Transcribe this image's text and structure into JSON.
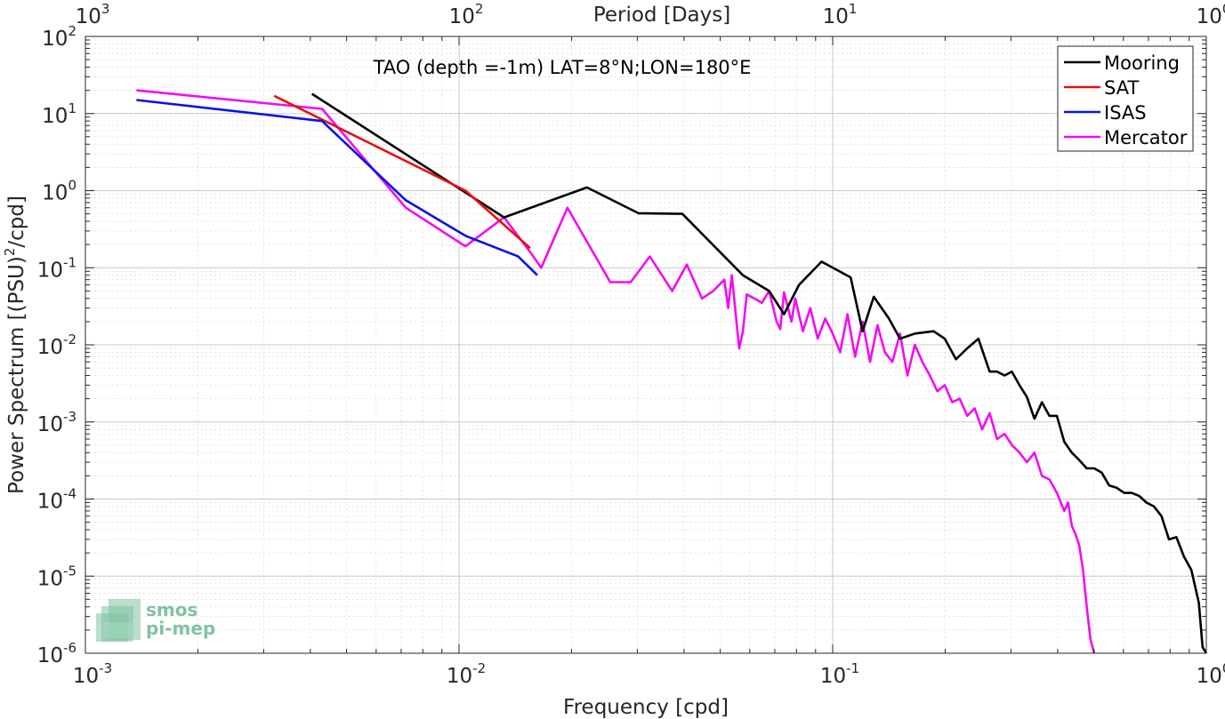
{
  "chart_data": {
    "type": "line",
    "title": "",
    "annotation": "TAO (depth =-1m) LAT=8°N;LON=180°E",
    "xlabel": "Frequency [cpd]",
    "ylabel": "Power Spectrum [(PSU)^2/cpd]",
    "ylabel_parts": {
      "base": "Power Spectrum [(PSU)",
      "sup": "2",
      "tail": "/cpd]"
    },
    "top_xlabel": "Period [Days]",
    "xscale": "log",
    "yscale": "log",
    "xlim": [
      0.001,
      1
    ],
    "ylim": [
      1e-06,
      100
    ],
    "grid": true,
    "minor_grid": true,
    "legend_position": "top-right",
    "x_ticks": [
      {
        "value": 0.001,
        "base": "10",
        "exp": "-3"
      },
      {
        "value": 0.01,
        "base": "10",
        "exp": "-2"
      },
      {
        "value": 0.1,
        "base": "10",
        "exp": "-1"
      },
      {
        "value": 1,
        "base": "10",
        "exp": "0"
      }
    ],
    "top_ticks": [
      {
        "value": 0.001,
        "base": "10",
        "exp": "3"
      },
      {
        "value": 0.01,
        "base": "10",
        "exp": "2"
      },
      {
        "value": 0.1,
        "base": "10",
        "exp": "1"
      },
      {
        "value": 1,
        "base": "10",
        "exp": "0"
      }
    ],
    "y_ticks": [
      {
        "value": 100,
        "base": "10",
        "exp": "2"
      },
      {
        "value": 10,
        "base": "10",
        "exp": "1"
      },
      {
        "value": 1,
        "base": "10",
        "exp": "0"
      },
      {
        "value": 0.1,
        "base": "10",
        "exp": "-1"
      },
      {
        "value": 0.01,
        "base": "10",
        "exp": "-2"
      },
      {
        "value": 0.001,
        "base": "10",
        "exp": "-3"
      },
      {
        "value": 0.0001,
        "base": "10",
        "exp": "-4"
      },
      {
        "value": 1e-05,
        "base": "10",
        "exp": "-5"
      },
      {
        "value": 1e-06,
        "base": "10",
        "exp": "-6"
      }
    ],
    "series": [
      {
        "name": "Mooring",
        "color": "#000000",
        "x": [
          0.00404,
          0.0132,
          0.022,
          0.0302,
          0.0396,
          0.0575,
          0.0676,
          0.0741,
          0.0813,
          0.0934,
          0.1117,
          0.1202,
          0.1288,
          0.1413,
          0.1514,
          0.166,
          0.1862,
          0.1995,
          0.2138,
          0.2291,
          0.2455,
          0.263,
          0.2754,
          0.2884,
          0.3016,
          0.3162,
          0.3311,
          0.3467,
          0.3631,
          0.3802,
          0.3981,
          0.4169,
          0.4365,
          0.4571,
          0.4786,
          0.5012,
          0.5248,
          0.5495,
          0.5754,
          0.6026,
          0.631,
          0.6607,
          0.6918,
          0.7244,
          0.7586,
          0.7943,
          0.8318,
          0.871,
          0.912,
          0.955,
          0.9772,
          1.0
        ],
        "y": [
          18.0,
          0.45,
          1.1,
          0.51,
          0.5,
          0.08,
          0.05,
          0.025,
          0.06,
          0.12,
          0.075,
          0.015,
          0.042,
          0.022,
          0.012,
          0.014,
          0.015,
          0.012,
          0.0065,
          0.009,
          0.012,
          0.0045,
          0.0045,
          0.004,
          0.0045,
          0.003,
          0.0021,
          0.0011,
          0.0018,
          0.0012,
          0.0012,
          0.00055,
          0.0004,
          0.00032,
          0.00025,
          0.00025,
          0.00022,
          0.00015,
          0.00014,
          0.00012,
          0.00012,
          0.00011,
          9e-05,
          8e-05,
          6e-05,
          3e-05,
          3.2e-05,
          1.8e-05,
          1.2e-05,
          4.5e-06,
          1.2e-06,
          1e-06
        ]
      },
      {
        "name": "SAT",
        "color": "#e81010",
        "x": [
          0.0032,
          0.0104,
          0.0155
        ],
        "y": [
          17.0,
          1.0,
          0.18
        ]
      },
      {
        "name": "ISAS",
        "color": "#0a12e6",
        "x": [
          0.00137,
          0.0043,
          0.0072,
          0.0104,
          0.0144,
          0.0162
        ],
        "y": [
          15.0,
          8.0,
          0.75,
          0.26,
          0.14,
          0.08
        ]
      },
      {
        "name": "Mercator",
        "color": "#f20cf2",
        "x": [
          0.00137,
          0.0043,
          0.0072,
          0.0104,
          0.0132,
          0.0155,
          0.0166,
          0.0195,
          0.0254,
          0.0288,
          0.0324,
          0.0372,
          0.0407,
          0.0447,
          0.0479,
          0.0513,
          0.0525,
          0.0537,
          0.0562,
          0.0575,
          0.0589,
          0.0617,
          0.0646,
          0.0676,
          0.0708,
          0.0724,
          0.0741,
          0.0776,
          0.0794,
          0.0832,
          0.0871,
          0.0912,
          0.0955,
          0.1,
          0.1047,
          0.1096,
          0.1148,
          0.1202,
          0.1259,
          0.1318,
          0.138,
          0.1445,
          0.1514,
          0.1585,
          0.166,
          0.1738,
          0.182,
          0.1905,
          0.1995,
          0.2089,
          0.2188,
          0.2291,
          0.2399,
          0.2512,
          0.263,
          0.2754,
          0.2884,
          0.302,
          0.3162,
          0.3311,
          0.3467,
          0.3631,
          0.3802,
          0.3981,
          0.4169,
          0.4266,
          0.4365,
          0.4467,
          0.4571,
          0.4677,
          0.4786,
          0.4898,
          0.5012
        ],
        "y": [
          20.0,
          11.5,
          0.6,
          0.19,
          0.45,
          0.16,
          0.1,
          0.6,
          0.065,
          0.065,
          0.14,
          0.05,
          0.11,
          0.04,
          0.05,
          0.07,
          0.03,
          0.08,
          0.009,
          0.015,
          0.045,
          0.04,
          0.035,
          0.05,
          0.02,
          0.016,
          0.048,
          0.02,
          0.04,
          0.015,
          0.03,
          0.012,
          0.022,
          0.014,
          0.008,
          0.025,
          0.007,
          0.02,
          0.006,
          0.018,
          0.008,
          0.006,
          0.014,
          0.004,
          0.01,
          0.006,
          0.004,
          0.0025,
          0.003,
          0.0018,
          0.002,
          0.0012,
          0.0015,
          0.0008,
          0.0013,
          0.0006,
          0.0007,
          0.0005,
          0.0004,
          0.0003,
          0.0004,
          0.0002,
          0.00018,
          0.00012,
          7e-05,
          9e-05,
          4.5e-05,
          3.5e-05,
          2.5e-05,
          1.2e-05,
          4e-06,
          1.5e-06,
          1e-06
        ]
      }
    ]
  },
  "logo": {
    "line1": "smos",
    "line2": "pi-mep"
  },
  "colors": {
    "grid": "#dcdcdc",
    "axis": "#262626",
    "logo": "#7fc3a2"
  }
}
